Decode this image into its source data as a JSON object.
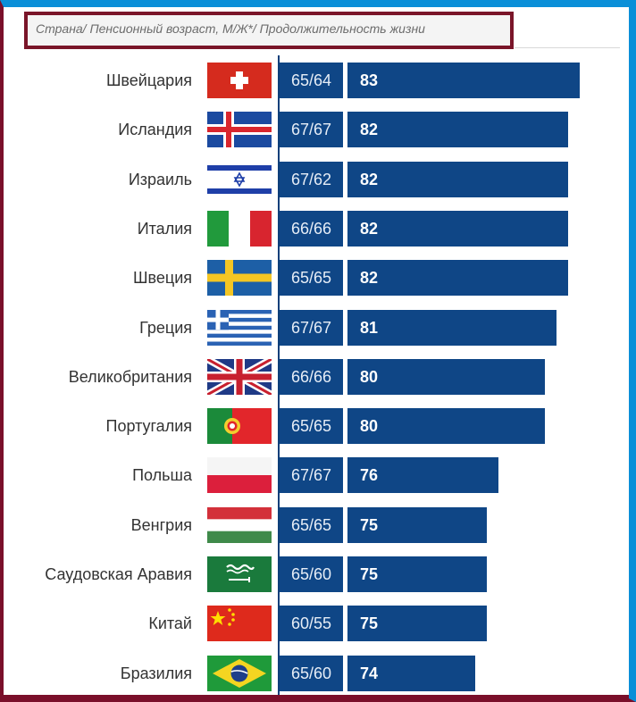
{
  "header": {
    "caption": "Страна/ Пенсионный возраст, М/Ж*/ Продолжительность жизни"
  },
  "colors": {
    "bar": "#0f4686",
    "frame_top_right": "#0a8fd8",
    "frame_bottom_left": "#7a0f2a"
  },
  "chart_data": {
    "type": "bar",
    "orientation": "horizontal",
    "title": "",
    "columns": [
      "Страна",
      "Пенсионный возраст, М/Ж*",
      "Продолжительность жизни"
    ],
    "categories": [
      "Швейцария",
      "Исландия",
      "Израиль",
      "Италия",
      "Швеция",
      "Греция",
      "Великобритания",
      "Португалия",
      "Польша",
      "Венгрия",
      "Саудовская Аравия",
      "Китай",
      "Бразилия"
    ],
    "retirement_age": [
      "65/64",
      "67/67",
      "67/62",
      "66/66",
      "65/65",
      "67/67",
      "66/66",
      "65/65",
      "67/67",
      "65/65",
      "65/60",
      "60/55",
      "65/60"
    ],
    "values": [
      83,
      82,
      82,
      82,
      82,
      81,
      80,
      80,
      76,
      75,
      75,
      75,
      74
    ],
    "flags": [
      "switzerland-flag-icon",
      "iceland-flag-icon",
      "israel-flag-icon",
      "italy-flag-icon",
      "sweden-flag-icon",
      "greece-flag-icon",
      "uk-flag-icon",
      "portugal-flag-icon",
      "poland-flag-icon",
      "hungary-flag-icon",
      "saudi-arabia-flag-icon",
      "china-flag-icon",
      "brazil-flag-icon"
    ],
    "xlim": [
      0,
      83
    ],
    "grid": false,
    "legend": "none"
  }
}
